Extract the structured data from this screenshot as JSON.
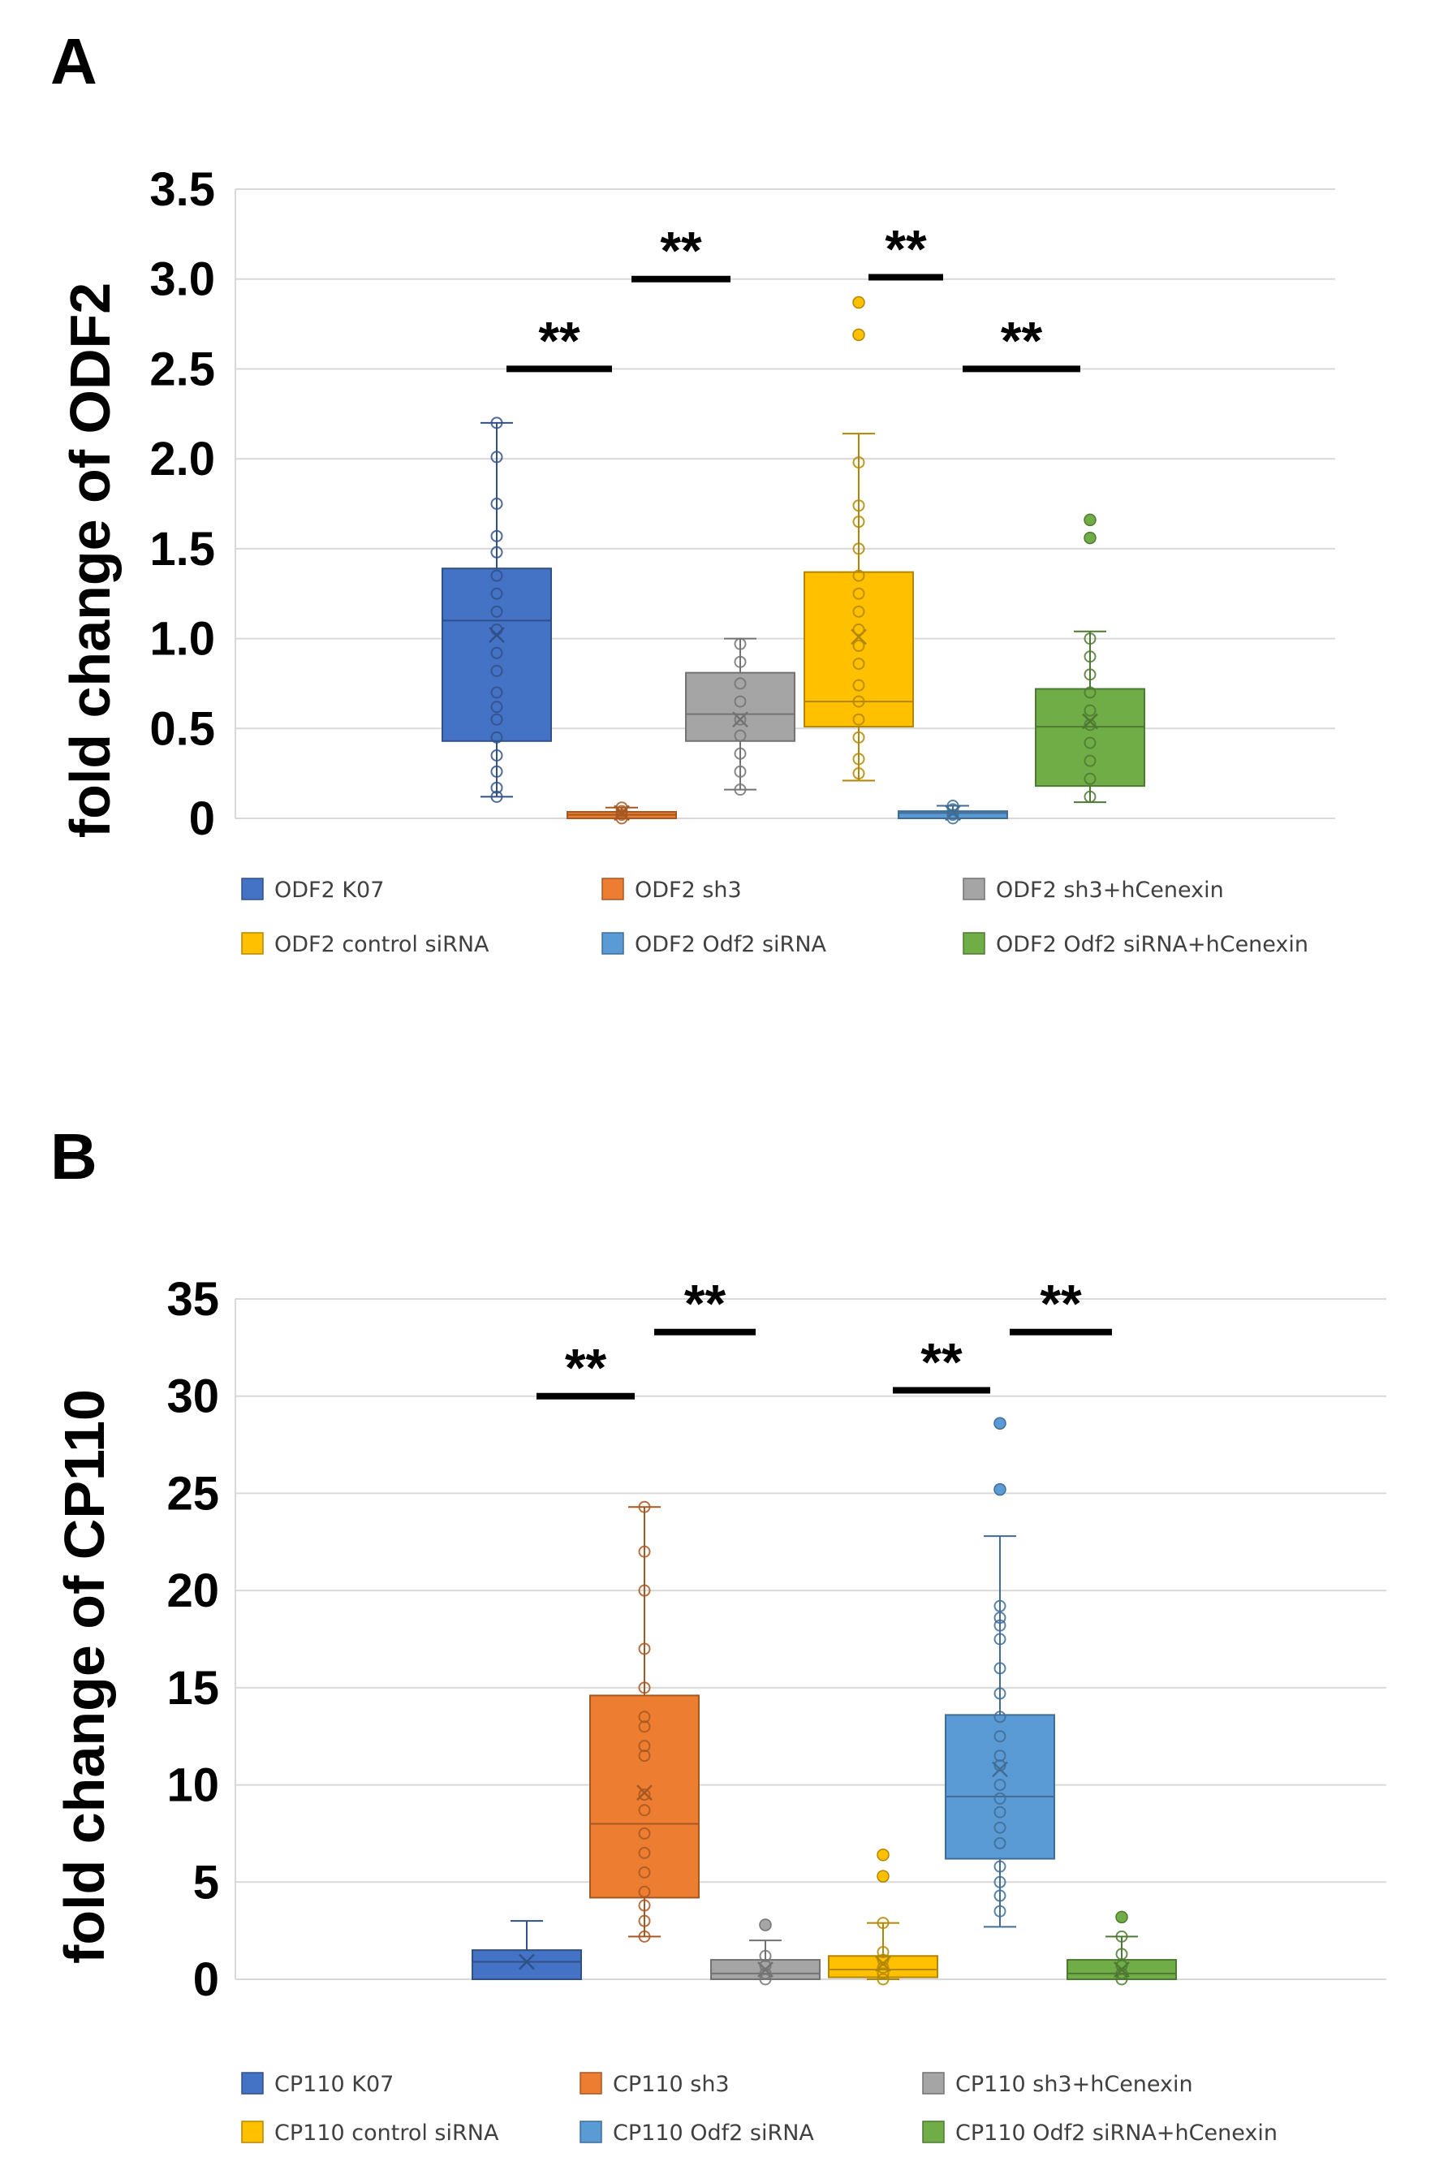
{
  "chart_data": [
    {
      "panel": "A",
      "type": "box",
      "ylabel": "fold change of ODF2",
      "ylim": [
        0,
        3.5
      ],
      "yticks": [
        0,
        0.5,
        1.0,
        1.5,
        2.0,
        2.5,
        3.0,
        3.5
      ],
      "ytick_labels": [
        "0",
        "0.5",
        "1.0",
        "1.5",
        "2.0",
        "2.5",
        "3.0",
        "3.5"
      ],
      "grid": true,
      "legend_position": "bottom",
      "series": [
        {
          "name": "ODF2 K07",
          "color": "#4472C4",
          "slot": 1,
          "min": 0.12,
          "q1": 0.43,
          "median": 1.1,
          "q3": 1.39,
          "max": 2.2,
          "mean": 1.02,
          "points": [
            0.12,
            0.17,
            0.26,
            0.35,
            0.45,
            0.55,
            0.62,
            0.7,
            0.82,
            0.92,
            1.05,
            1.15,
            1.25,
            1.35,
            1.48,
            1.57,
            1.75,
            2.01,
            2.2
          ],
          "outliers": []
        },
        {
          "name": "ODF2 sh3",
          "color": "#ED7D31",
          "slot": 2,
          "min": 0.0,
          "q1": 0.0,
          "median": 0.02,
          "q3": 0.03,
          "max": 0.06,
          "mean": 0.03,
          "points": [
            0.0,
            0.02,
            0.04,
            0.06
          ],
          "outliers": []
        },
        {
          "name": "ODF2 sh3+hCenexin",
          "color": "#A5A5A5",
          "slot": 3,
          "min": 0.16,
          "q1": 0.43,
          "median": 0.58,
          "q3": 0.81,
          "max": 1.0,
          "mean": 0.55,
          "points": [
            0.16,
            0.26,
            0.36,
            0.46,
            0.55,
            0.65,
            0.75,
            0.87,
            0.97
          ],
          "outliers": []
        },
        {
          "name": "ODF2 control siRNA",
          "color": "#FFC000",
          "slot": 4,
          "min": 0.21,
          "q1": 0.51,
          "median": 0.65,
          "q3": 1.37,
          "max": 2.14,
          "mean": 1.01,
          "points": [
            0.25,
            0.33,
            0.45,
            0.55,
            0.65,
            0.74,
            0.86,
            0.96,
            1.05,
            1.15,
            1.25,
            1.35,
            1.5,
            1.65,
            1.74,
            1.98
          ],
          "outliers": [
            2.69,
            2.87
          ]
        },
        {
          "name": "ODF2 Odf2 siRNA",
          "color": "#5B9BD5",
          "slot": 5,
          "min": 0.0,
          "q1": 0.0,
          "median": 0.03,
          "q3": 0.04,
          "max": 0.07,
          "mean": 0.03,
          "points": [
            0.0,
            0.02,
            0.05,
            0.07
          ],
          "outliers": []
        },
        {
          "name": "ODF2 Odf2 siRNA+hCenexin",
          "color": "#70AD47",
          "slot": 6,
          "min": 0.09,
          "q1": 0.18,
          "median": 0.51,
          "q3": 0.72,
          "max": 1.04,
          "mean": 0.54,
          "points": [
            0.12,
            0.22,
            0.32,
            0.42,
            0.52,
            0.6,
            0.7,
            0.8,
            0.9,
            1.0
          ],
          "outliers": [
            1.56,
            1.66
          ]
        }
      ],
      "significance": [
        {
          "from_slot": 1,
          "to_slot": 2,
          "y": 2.5,
          "label": "**"
        },
        {
          "from_slot": 2,
          "to_slot": 3,
          "y": 3.0,
          "label": "**"
        },
        {
          "from_slot": 4,
          "to_slot": 5,
          "y": 3.01,
          "label": "**"
        },
        {
          "from_slot": 5,
          "to_slot": 6,
          "y": 2.5,
          "label": "**"
        }
      ]
    },
    {
      "panel": "B",
      "type": "box",
      "ylabel": "fold change of CP110",
      "ylim": [
        0,
        35
      ],
      "yticks": [
        0,
        5,
        10,
        15,
        20,
        25,
        30,
        35
      ],
      "ytick_labels": [
        "0",
        "5",
        "10",
        "15",
        "20",
        "25",
        "30",
        "35"
      ],
      "grid": true,
      "legend_position": "bottom",
      "series": [
        {
          "name": "CP110 K07",
          "color": "#4472C4",
          "slot": 1,
          "min": 0.0,
          "q1": 0.0,
          "median": 0.9,
          "q3": 1.5,
          "max": 3.0,
          "mean": 0.9,
          "points": [],
          "outliers": []
        },
        {
          "name": "CP110 sh3",
          "color": "#ED7D31",
          "slot": 2,
          "min": 2.2,
          "q1": 4.2,
          "median": 8.0,
          "q3": 14.6,
          "max": 24.3,
          "mean": 9.6,
          "points": [
            2.2,
            3.0,
            3.8,
            4.5,
            5.5,
            6.5,
            7.5,
            8.7,
            9.5,
            11.5,
            12.0,
            13.0,
            13.5,
            15.0,
            17.0,
            20.0,
            22.0,
            24.3
          ],
          "outliers": []
        },
        {
          "name": "CP110 sh3+hCenexin",
          "color": "#A5A5A5",
          "slot": 3,
          "min": 0.0,
          "q1": 0.0,
          "median": 0.3,
          "q3": 1.0,
          "max": 2.0,
          "mean": 0.5,
          "points": [
            0.0,
            0.3,
            0.7,
            1.2
          ],
          "outliers": [
            2.8
          ]
        },
        {
          "name": "CP110 control siRNA",
          "color": "#FFC000",
          "slot": 4,
          "min": 0.0,
          "q1": 0.1,
          "median": 0.5,
          "q3": 1.2,
          "max": 2.9,
          "mean": 0.8,
          "points": [
            0.0,
            0.3,
            0.6,
            1.0,
            1.4,
            2.9
          ],
          "outliers": [
            5.3,
            6.4
          ]
        },
        {
          "name": "CP110 Odf2 siRNA",
          "color": "#5B9BD5",
          "slot": 5,
          "min": 2.7,
          "q1": 6.2,
          "median": 9.4,
          "q3": 13.6,
          "max": 22.8,
          "mean": 10.8,
          "points": [
            3.5,
            4.3,
            5.0,
            5.8,
            7.0,
            7.8,
            8.6,
            9.3,
            10.0,
            11.0,
            11.5,
            12.5,
            13.5,
            14.7,
            16.0,
            17.5,
            18.2,
            18.6,
            19.2
          ],
          "outliers": [
            25.2,
            28.6
          ]
        },
        {
          "name": "CP110 Odf2 siRNA+hCenexin",
          "color": "#70AD47",
          "slot": 6,
          "min": 0.0,
          "q1": 0.0,
          "median": 0.3,
          "q3": 1.0,
          "max": 2.2,
          "mean": 0.5,
          "points": [
            0.0,
            0.3,
            0.7,
            1.3,
            2.2
          ],
          "outliers": [
            3.2
          ]
        }
      ],
      "significance": [
        {
          "from_slot": 1,
          "to_slot": 2,
          "y": 30.0,
          "label": "**"
        },
        {
          "from_slot": 2,
          "to_slot": 3,
          "y": 33.3,
          "label": "**"
        },
        {
          "from_slot": 4,
          "to_slot": 5,
          "y": 30.3,
          "label": "**"
        },
        {
          "from_slot": 5,
          "to_slot": 6,
          "y": 33.3,
          "label": "**"
        }
      ]
    }
  ]
}
